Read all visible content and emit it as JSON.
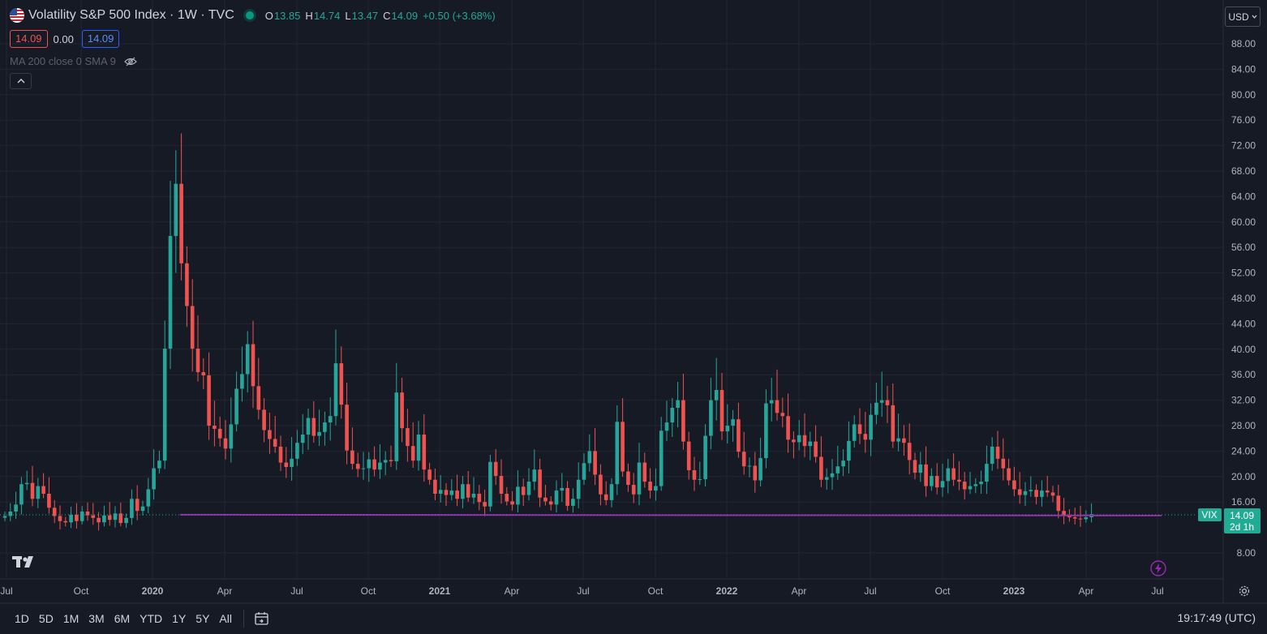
{
  "header": {
    "symbol_title": "Volatility S&P 500 Index · 1W · TVC",
    "ohlc": {
      "o_label": "O",
      "o": "13.85",
      "h_label": "H",
      "h": "14.74",
      "l_label": "L",
      "l": "13.47",
      "c_label": "C",
      "c": "14.09",
      "change": "+0.50 (+3.68%)"
    },
    "bid": "14.09",
    "spread": "0.00",
    "ask": "14.09",
    "indicator": "MA 200 close 0 SMA 9",
    "currency": "USD"
  },
  "price_tag": {
    "symbol": "VIX",
    "value": "14.09",
    "countdown": "2d 1h"
  },
  "timeframes": [
    "1D",
    "5D",
    "1M",
    "3M",
    "6M",
    "YTD",
    "1Y",
    "5Y",
    "All"
  ],
  "clock": "19:17:49 (UTC)",
  "colors": {
    "background": "#161a25",
    "grid": "#232632",
    "up": "#26a69a",
    "down": "#ef5350",
    "ma": "#9c27b0",
    "text": "#b2b5be"
  },
  "chart_data": {
    "type": "candlestick",
    "title": "Volatility S&P 500 Index · 1W · TVC",
    "x_axis": {
      "ticks": [
        "Jul",
        "Oct",
        "2020",
        "Apr",
        "Jul",
        "Oct",
        "2021",
        "Apr",
        "Jul",
        "Oct",
        "2022",
        "Apr",
        "Jul",
        "Oct",
        "2023",
        "Apr",
        "Jul"
      ],
      "bold_ticks": [
        "2020",
        "2021",
        "2022",
        "2023"
      ]
    },
    "y_axis": {
      "ticks": [
        8,
        16,
        20,
        24,
        28,
        32,
        36,
        40,
        44,
        48,
        52,
        56,
        60,
        64,
        68,
        72,
        76,
        80,
        84,
        88
      ],
      "range": [
        4,
        90
      ],
      "position": "right"
    },
    "grid": true,
    "series": [
      {
        "name": "VIX",
        "type": "candlestick",
        "approx_closes_weekly": [
          13.8,
          14.5,
          15.6,
          18.8,
          19.0,
          16.5,
          18.5,
          17.3,
          15.1,
          13.8,
          13.0,
          12.8,
          14.0,
          13.0,
          14.5,
          13.9,
          13.5,
          12.8,
          13.9,
          13.2,
          14.2,
          12.7,
          13.5,
          16.5,
          14.6,
          15.3,
          18.0,
          21.3,
          22.5,
          40.1,
          57.8,
          66.0,
          53.5,
          46.8,
          40.1,
          36.4,
          35.9,
          28.0,
          27.5,
          26.0,
          24.4,
          28.2,
          33.8,
          36.1,
          40.8,
          34.2,
          30.5,
          27.3,
          25.9,
          24.7,
          22.2,
          21.5,
          22.8,
          25.3,
          26.6,
          29.2,
          26.4,
          27.0,
          28.5,
          29.5,
          37.8,
          31.3,
          24.1,
          22.0,
          21.2,
          21.3,
          22.7,
          21.1,
          22.2,
          22.6,
          22.4,
          33.2,
          27.6,
          24.8,
          22.5,
          26.6,
          21.1,
          19.5,
          17.3,
          17.9,
          17.1,
          17.8,
          16.5,
          18.8,
          16.7,
          17.3,
          16.0,
          15.3,
          22.3,
          20.1,
          17.3,
          16.1,
          15.6,
          18.4,
          17.1,
          19.2,
          21.1,
          16.7,
          16.1,
          15.6,
          17.8,
          18.2,
          15.4,
          16.5,
          19.5,
          22.1,
          24.0,
          20.3,
          17.2,
          16.3,
          18.8,
          28.6,
          20.8,
          18.7,
          17.2,
          22.2,
          19.2,
          17.8,
          18.5,
          27.2,
          28.5,
          30.8,
          32.0,
          25.5,
          21.0,
          19.5,
          19.6,
          26.4,
          32.0,
          33.6,
          27.1,
          28.0,
          29.0,
          23.9,
          21.6,
          21.7,
          19.4,
          22.9,
          31.5,
          32.0,
          30.0,
          29.5,
          25.8,
          25.4,
          26.5,
          24.8,
          25.5,
          23.1,
          19.5,
          19.9,
          20.5,
          21.6,
          22.5,
          25.6,
          28.2,
          26.7,
          25.8,
          29.7,
          31.6,
          32.0,
          31.2,
          25.5,
          26.0,
          25.3,
          22.6,
          20.6,
          21.9,
          18.5,
          20.1,
          18.3,
          19.3,
          21.3,
          19.5,
          19.2,
          18.0,
          18.5,
          18.8,
          19.2,
          22.0,
          24.7,
          22.8,
          21.3,
          19.4,
          18.0,
          17.1,
          17.7,
          17.9,
          16.8,
          17.8,
          17.5,
          17.0,
          14.6,
          13.9,
          13.6,
          13.4,
          13.3,
          13.6,
          14.09
        ]
      },
      {
        "name": "MA 200",
        "type": "line",
        "approx_level": 14.0,
        "color": "#9c27b0"
      }
    ]
  }
}
